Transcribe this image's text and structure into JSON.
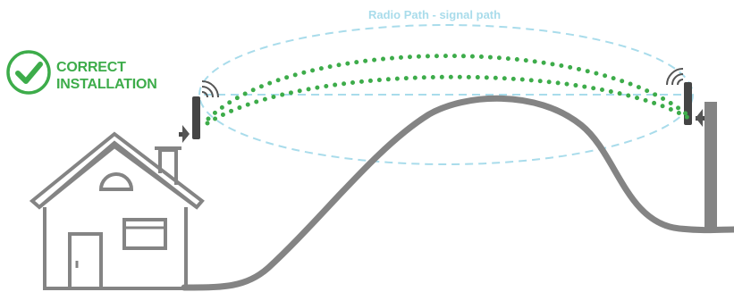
{
  "status": {
    "line1": "CORRECT",
    "line2": "INSTALLATION",
    "icon": "checkmark-circle-icon",
    "color": "#3dac4a"
  },
  "radio_path": {
    "label": "Radio Path - signal path",
    "color": "#a9dceb"
  },
  "signal_color": "#3dac4a",
  "outline_color": "#848484"
}
